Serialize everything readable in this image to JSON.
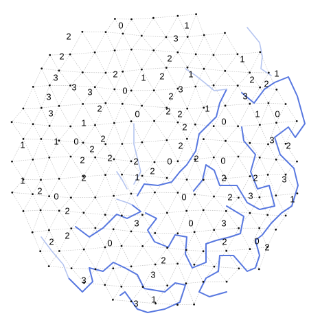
{
  "puzzle": {
    "type": "slitherlink",
    "grid": "penrose-rhombus",
    "colors": {
      "grid_line": "#c8c8c8",
      "vertex": "#111111",
      "clue": "#000000",
      "loop_strong": "#5878e0",
      "loop_faint": "#b4c4f0"
    },
    "clues": [
      {
        "text": "0"
      },
      {
        "text": "1"
      },
      {
        "text": "2"
      },
      {
        "text": "3"
      },
      {
        "text": "2"
      },
      {
        "text": "2"
      },
      {
        "text": "1"
      },
      {
        "text": "3"
      },
      {
        "text": "2"
      },
      {
        "text": "1"
      },
      {
        "text": "2"
      },
      {
        "text": "1"
      },
      {
        "text": "1"
      },
      {
        "text": "2"
      },
      {
        "text": "3"
      },
      {
        "text": "2"
      },
      {
        "text": "3"
      },
      {
        "text": "0"
      },
      {
        "text": "3"
      },
      {
        "text": "3"
      },
      {
        "text": "2"
      },
      {
        "text": "3"
      },
      {
        "text": "2"
      },
      {
        "text": "1"
      },
      {
        "text": "3"
      },
      {
        "text": "2"
      },
      {
        "text": "0"
      },
      {
        "text": "2"
      },
      {
        "text": "1"
      },
      {
        "text": "0"
      },
      {
        "text": "1"
      },
      {
        "text": "0"
      },
      {
        "text": "1"
      },
      {
        "text": "2"
      },
      {
        "text": "1"
      },
      {
        "text": "0"
      },
      {
        "text": "2"
      },
      {
        "text": "2"
      },
      {
        "text": "3"
      },
      {
        "text": "2"
      },
      {
        "text": "2"
      },
      {
        "text": "2"
      },
      {
        "text": "2"
      },
      {
        "text": "0"
      },
      {
        "text": "2"
      },
      {
        "text": "0"
      },
      {
        "text": "2"
      },
      {
        "text": "2"
      },
      {
        "text": "1"
      },
      {
        "text": "2"
      },
      {
        "text": "2"
      },
      {
        "text": "3"
      },
      {
        "text": "2"
      },
      {
        "text": "3"
      },
      {
        "text": "2"
      },
      {
        "text": "2"
      },
      {
        "text": "0"
      },
      {
        "text": "1"
      },
      {
        "text": "1"
      },
      {
        "text": "3"
      },
      {
        "text": "0"
      },
      {
        "text": "3"
      },
      {
        "text": "2"
      },
      {
        "text": "2"
      },
      {
        "text": "0"
      },
      {
        "text": "2"
      },
      {
        "text": "0"
      },
      {
        "text": "2"
      },
      {
        "text": "2"
      },
      {
        "text": "3"
      },
      {
        "text": "2"
      },
      {
        "text": "0"
      },
      {
        "text": "3"
      },
      {
        "text": "3"
      },
      {
        "text": "1"
      }
    ]
  }
}
